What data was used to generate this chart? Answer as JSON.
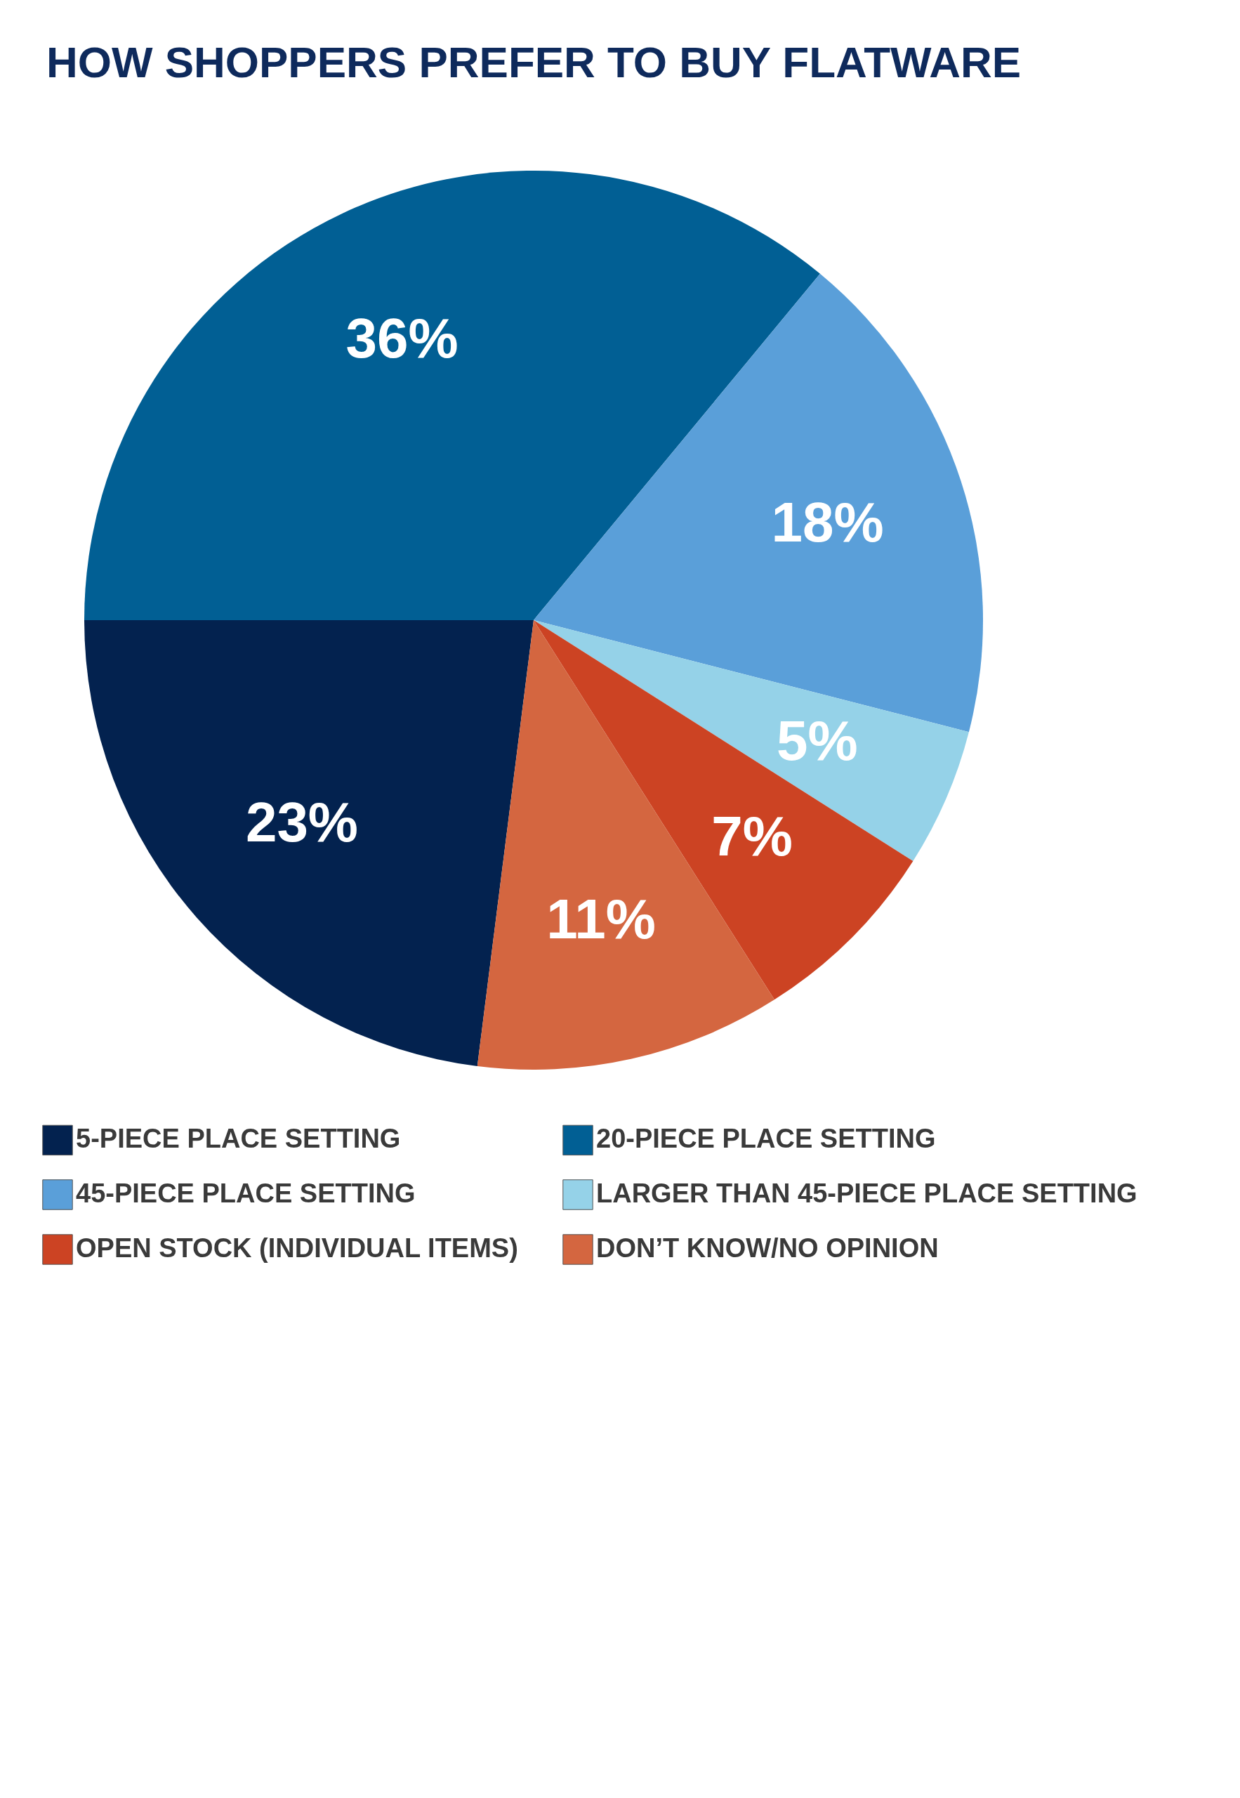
{
  "chart_data": {
    "type": "pie",
    "title": "HOW SHOPPERS PREFER TO BUY FLATWARE",
    "categories": [
      "5-PIECE PLACE SETTING",
      "20-PIECE PLACE SETTING",
      "45-PIECE PLACE SETTING",
      "LARGER THAN 45-PIECE PLACE SETTING",
      "OPEN STOCK (INDIVIDUAL ITEMS)",
      "DON’T KNOW/NO OPINION"
    ],
    "values": [
      23,
      36,
      18,
      5,
      7,
      11
    ],
    "value_labels": [
      "23%",
      "36%",
      "18%",
      "5%",
      "7%",
      "11%"
    ],
    "colors": [
      "#03224f",
      "#015f94",
      "#5a9fd9",
      "#95d2e8",
      "#cc4323",
      "#d46640"
    ],
    "legend": "bottom"
  }
}
